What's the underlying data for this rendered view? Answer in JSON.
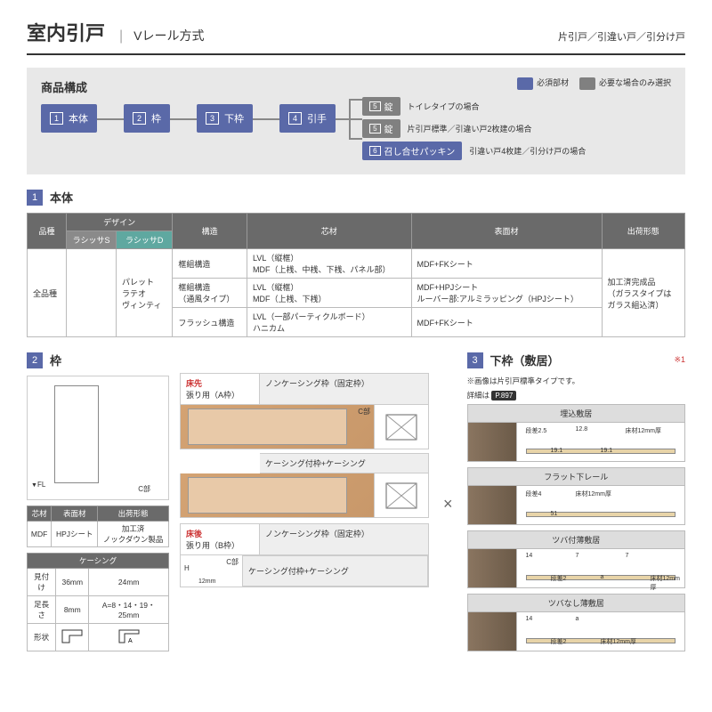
{
  "colors": {
    "primary": "#5a69a8",
    "gray": "#808080",
    "teal": "#5fa8a0",
    "red": "#c33"
  },
  "header": {
    "title": "室内引戸",
    "subtitle": "Vレール方式",
    "types": "片引戸／引違い戸／引分け戸"
  },
  "composition": {
    "title": "商品構成",
    "legend": {
      "required": "必須部材",
      "optional": "必要な場合のみ選択"
    },
    "nodes": [
      {
        "num": "1",
        "label": "本体"
      },
      {
        "num": "2",
        "label": "枠"
      },
      {
        "num": "3",
        "label": "下枠"
      },
      {
        "num": "4",
        "label": "引手"
      }
    ],
    "branches": [
      {
        "num": "5",
        "label": "錠",
        "note": "トイレタイプの場合",
        "color": "#808080"
      },
      {
        "num": "5",
        "label": "錠",
        "note": "片引戸標準／引違い戸2枚建の場合",
        "color": "#808080"
      },
      {
        "num": "6",
        "label": "召し合せパッキン",
        "note": "引違い戸4枚建／引分け戸の場合",
        "color": "#5a69a8"
      }
    ]
  },
  "section1": {
    "num": "1",
    "title": "本体",
    "headers": {
      "product": "品種",
      "design": "デザイン",
      "d1": "ラシッサS",
      "d2": "ラシッサD",
      "struct": "構造",
      "core": "芯材",
      "surface": "表面材",
      "ship": "出荷形態"
    },
    "product": "全品種",
    "designs": "パレット\nラテオ\nヴィンティ",
    "rows": [
      {
        "struct": "框組構造",
        "core": "LVL（縦框）\nMDF（上桟、中桟、下桟、パネル部）",
        "surface": "MDF+FKシート"
      },
      {
        "struct": "框組構造\n（通風タイプ）",
        "core": "LVL（縦框）\nMDF（上桟、下桟）",
        "surface": "MDF+HPJシート\nルーバー部:アルミラッピング（HPJシート）"
      },
      {
        "struct": "フラッシュ構造",
        "core": "LVL（一部パーティクルボード）\nハニカム",
        "surface": "MDF+FKシート"
      }
    ],
    "ship": "加工済完成品\n（ガラスタイプは\nガラス組込済）"
  },
  "section2": {
    "num": "2",
    "title": "枠",
    "elev": {
      "fl": "FL",
      "cpart": "C部"
    },
    "mat_table": {
      "h1": "芯材",
      "h2": "表面材",
      "h3": "出荷形態",
      "v1": "MDF",
      "v2": "HPJシート",
      "v3": "加工済\nノックダウン製品"
    },
    "casing_table": {
      "title": "ケーシング",
      "r1": "見付け",
      "r1a": "36mm",
      "r1b": "24mm",
      "r2": "足長さ",
      "r2a": "8mm",
      "r2b": "A=8・14・19・25mm",
      "r3": "形状"
    },
    "frames": {
      "a_label_pre": "床先",
      "a_label": "張り用（A枠）",
      "b_label_pre": "床後",
      "b_label": "張り用（B枠）",
      "type1": "ノンケーシング枠（固定枠）",
      "type2": "ケーシング付枠+ケーシング",
      "cpart": "C部",
      "h": "H",
      "dim12": "12mm"
    }
  },
  "section3": {
    "num": "3",
    "title": "下枠（敷居）",
    "star": "※1",
    "note1": "※画像は片引戸標準タイプです。",
    "note2_pre": "詳細は",
    "note2_ref": "P.897",
    "sills": [
      {
        "title": "埋込敷居",
        "dims": [
          "段差2.5",
          "19.1",
          "12.8",
          "19.1",
          "床材12mm厚"
        ]
      },
      {
        "title": "フラット下レール",
        "dims": [
          "段差4",
          "51",
          "床材12mm厚"
        ]
      },
      {
        "title": "ツバ付薄敷居",
        "dims": [
          "14",
          "段差2",
          "7",
          "a",
          "7",
          "床材12mm厚"
        ]
      },
      {
        "title": "ツバなし薄敷居",
        "dims": [
          "14",
          "段差2",
          "a",
          "床材12mm厚"
        ]
      }
    ]
  }
}
